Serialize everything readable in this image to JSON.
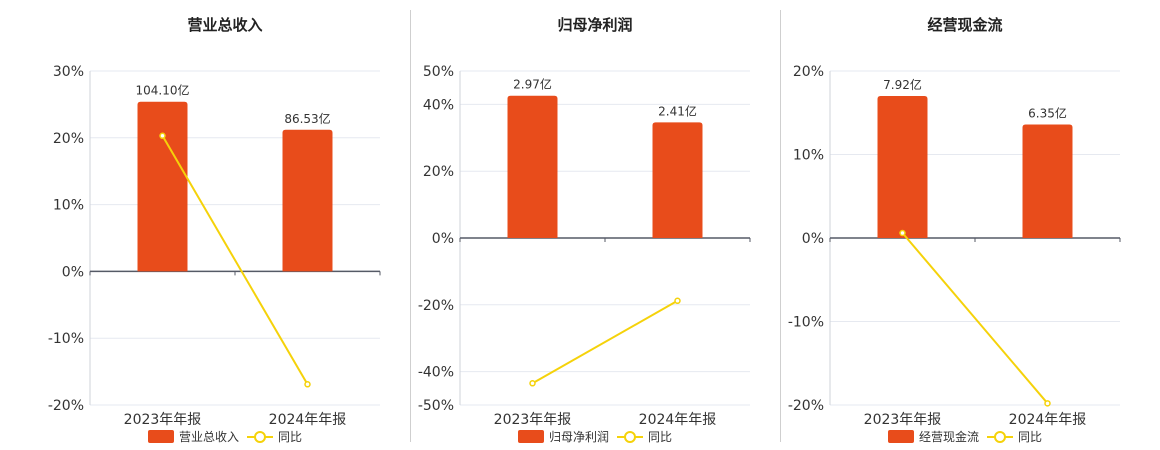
{
  "colors": {
    "bar": "#e84c1b",
    "line": "#f5d20a"
  },
  "chart_data": [
    {
      "type": "bar",
      "title": "营业总收入",
      "categories": [
        "2023年年报",
        "2024年年报"
      ],
      "ylim": [
        -20,
        30
      ],
      "yticks": [
        30,
        20,
        10,
        0,
        -10,
        -20
      ],
      "ytick_labels": [
        "30%",
        "20%",
        "10%",
        "0%",
        "-10%",
        "-20%"
      ],
      "series": [
        {
          "name": "营业总收入",
          "kind": "bar",
          "values": [
            25.4,
            21.2
          ],
          "labels": [
            "104.10亿",
            "86.53亿"
          ]
        },
        {
          "name": "同比",
          "kind": "line",
          "values": [
            20.3,
            -16.9
          ]
        }
      ],
      "legend": "bottom"
    },
    {
      "type": "bar",
      "title": "归母净利润",
      "categories": [
        "2023年年报",
        "2024年年报"
      ],
      "ylim": [
        -50,
        50
      ],
      "yticks": [
        50,
        40,
        20,
        0,
        -20,
        -40,
        -50
      ],
      "ytick_labels": [
        "50%",
        "40%",
        "20%",
        "0%",
        "-20%",
        "-40%",
        "-50%"
      ],
      "series": [
        {
          "name": "归母净利润",
          "kind": "bar",
          "values": [
            42.6,
            34.6
          ],
          "labels": [
            "2.97亿",
            "2.41亿"
          ]
        },
        {
          "name": "同比",
          "kind": "line",
          "values": [
            -43.5,
            -18.8
          ]
        }
      ],
      "legend": "bottom"
    },
    {
      "type": "bar",
      "title": "经营现金流",
      "categories": [
        "2023年年报",
        "2024年年报"
      ],
      "ylim": [
        -20,
        20
      ],
      "yticks": [
        20,
        10,
        0,
        -10,
        -20
      ],
      "ytick_labels": [
        "20%",
        "10%",
        "0%",
        "-10%",
        "-20%"
      ],
      "series": [
        {
          "name": "经营现金流",
          "kind": "bar",
          "values": [
            17.0,
            13.6
          ],
          "labels": [
            "7.92亿",
            "6.35亿"
          ]
        },
        {
          "name": "同比",
          "kind": "line",
          "values": [
            0.6,
            -19.8
          ]
        }
      ],
      "legend": "bottom"
    }
  ]
}
